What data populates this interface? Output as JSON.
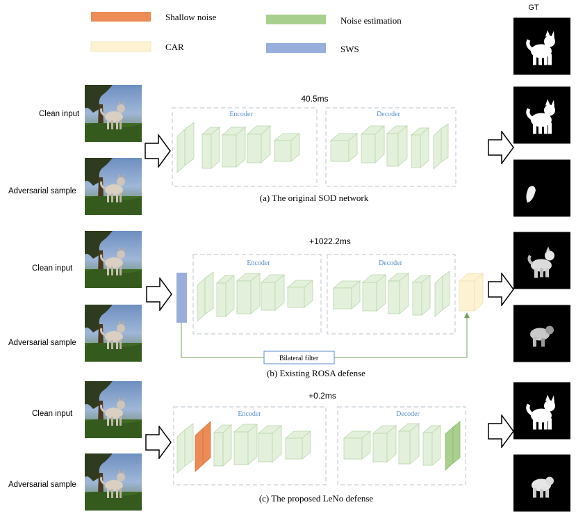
{
  "legend": {
    "shallow_noise": "Shallow noise",
    "noise_estimation": "Noise estimation",
    "car": "CAR",
    "sws": "SWS",
    "colors": {
      "shallow_noise": "#ec8b55",
      "noise_estimation": "#a9d08e",
      "car": "#fdf3d3",
      "sws": "#9aaedb"
    }
  },
  "gt_label": "GT",
  "labels": {
    "clean_input": "Clean input",
    "adversarial_sample": "Adversarial sample",
    "encoder": "Encoder",
    "decoder": "Decoder",
    "bilateral_filter": "Bilateral filter"
  },
  "panels": {
    "a": {
      "timing": "40.5ms",
      "caption": "(a) The original SOD network"
    },
    "b": {
      "timing": "+1022.2ms",
      "caption": "(b) Existing ROSA defense"
    },
    "c": {
      "timing": "+0.2ms",
      "caption": "(c) The proposed LeNo defense"
    }
  },
  "colors": {
    "block_fill": "#e3f1dc",
    "block_stroke": "#b9d5ab",
    "dash_stroke": "#b8c3cc",
    "encoder_text": "#5b8fc9",
    "arrow_green": "#70a35a"
  },
  "images": {
    "input": "dog-photo",
    "mask": "saliency-mask"
  }
}
